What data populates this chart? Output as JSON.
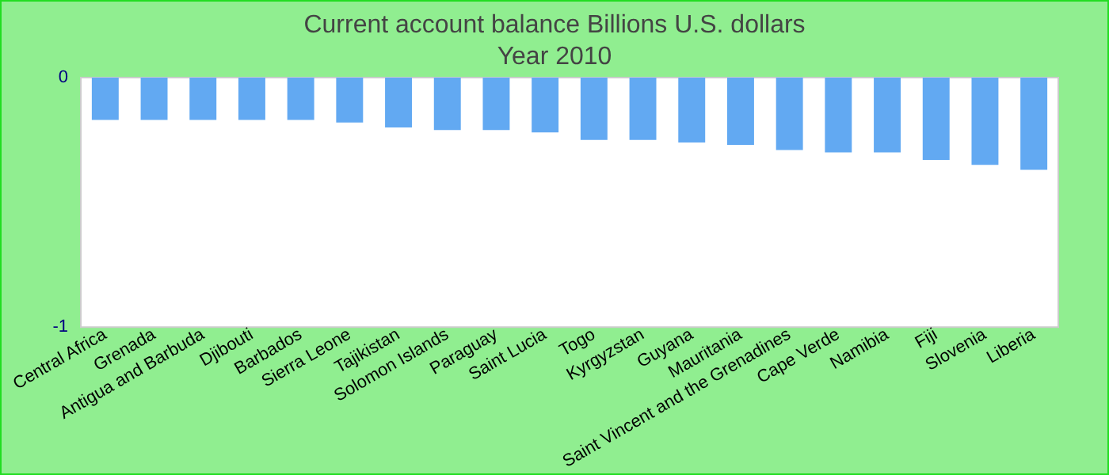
{
  "chart_data": {
    "type": "bar",
    "title": "Current account balance Billions U.S. dollars",
    "subtitle": "Year 2010",
    "categories": [
      "Central Africa",
      "Grenada",
      "Antigua and Barbuda",
      "Djibouti",
      "Barbados",
      "Sierra Leone",
      "Tajikistan",
      "Solomon Islands",
      "Paraguay",
      "Saint Lucia",
      "Togo",
      "Kyrgyzstan",
      "Guyana",
      "Mauritania",
      "Saint Vincent and the Grenadines",
      "Cape Verde",
      "Namibia",
      "Fiji",
      "Slovenia",
      "Liberia"
    ],
    "values": [
      -0.17,
      -0.17,
      -0.17,
      -0.17,
      -0.17,
      -0.18,
      -0.2,
      -0.21,
      -0.21,
      -0.22,
      -0.25,
      -0.25,
      -0.26,
      -0.27,
      -0.29,
      -0.3,
      -0.3,
      -0.33,
      -0.35,
      -0.37
    ],
    "color": "#62a9f2",
    "ylim": [
      -1,
      0
    ],
    "yticks": [
      -1,
      0
    ],
    "grid": false
  }
}
